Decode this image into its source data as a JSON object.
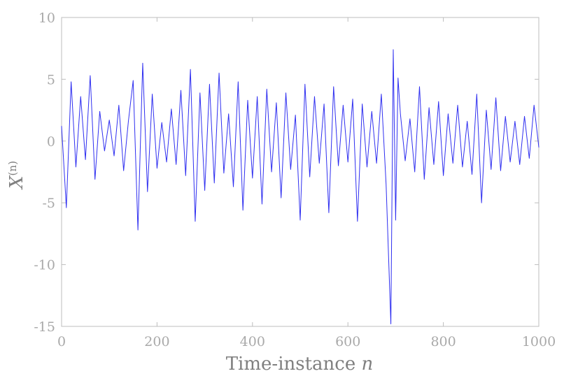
{
  "chart_data": {
    "type": "line",
    "title": "",
    "xlabel": "Time-instance",
    "xlabel_var": "n",
    "ylabel_base": "X",
    "ylabel_sup": "(n)",
    "xlim": [
      0,
      1000
    ],
    "ylim": [
      -15,
      10
    ],
    "x_ticks": [
      0,
      200,
      400,
      600,
      800,
      1000
    ],
    "y_ticks": [
      10,
      5,
      0,
      -5,
      -10,
      -15
    ],
    "x_tick_labels": [
      "0",
      "200",
      "400",
      "600",
      "800",
      "1000"
    ],
    "y_tick_labels": [
      "10",
      "5",
      "0",
      "-5",
      "-10",
      "-15"
    ],
    "grid": false,
    "legend": "none",
    "series": [
      {
        "color": "#2f2ff0",
        "x": [
          0,
          10,
          20,
          30,
          40,
          50,
          60,
          70,
          80,
          90,
          100,
          110,
          120,
          130,
          140,
          150,
          160,
          170,
          180,
          190,
          200,
          210,
          220,
          230,
          240,
          250,
          260,
          270,
          280,
          290,
          300,
          310,
          320,
          330,
          340,
          350,
          360,
          370,
          380,
          390,
          400,
          410,
          420,
          430,
          440,
          450,
          460,
          470,
          480,
          490,
          500,
          510,
          520,
          530,
          540,
          550,
          560,
          570,
          580,
          590,
          600,
          610,
          620,
          630,
          640,
          650,
          660,
          670,
          680,
          690,
          695,
          700,
          705,
          710,
          720,
          730,
          740,
          750,
          760,
          770,
          780,
          790,
          800,
          810,
          820,
          830,
          840,
          850,
          860,
          870,
          880,
          890,
          900,
          910,
          920,
          930,
          940,
          950,
          960,
          970,
          980,
          990,
          1000
        ],
        "y": [
          1.2,
          -5.4,
          4.8,
          -2.1,
          3.6,
          -1.5,
          5.3,
          -3.1,
          2.4,
          -0.8,
          1.7,
          -1.2,
          2.9,
          -2.4,
          1.6,
          4.9,
          -7.2,
          6.3,
          -4.1,
          3.8,
          -2.2,
          1.5,
          -1.7,
          2.6,
          -1.9,
          4.1,
          -2.8,
          5.8,
          -6.5,
          3.9,
          -4.0,
          4.6,
          -3.4,
          5.5,
          -2.6,
          2.2,
          -3.7,
          4.8,
          -5.6,
          3.3,
          -3.0,
          3.6,
          -5.1,
          4.2,
          -2.5,
          3.1,
          -4.6,
          3.9,
          -2.3,
          2.1,
          -6.4,
          4.6,
          -2.9,
          3.6,
          -1.8,
          3.0,
          -5.8,
          4.4,
          -2.0,
          2.9,
          -1.7,
          3.4,
          -6.5,
          3.0,
          -2.1,
          2.4,
          -1.8,
          3.8,
          -3.5,
          -14.8,
          7.4,
          -6.4,
          5.1,
          2.2,
          -1.6,
          1.8,
          -2.5,
          4.4,
          -3.1,
          2.7,
          -1.9,
          3.2,
          -2.8,
          2.2,
          -1.8,
          2.9,
          -2.1,
          1.6,
          -2.7,
          3.8,
          -5.0,
          2.5,
          -2.3,
          3.5,
          -2.4,
          2.0,
          -1.7,
          1.6,
          -1.9,
          2.0,
          -1.4,
          2.9,
          -0.5
        ]
      }
    ]
  }
}
